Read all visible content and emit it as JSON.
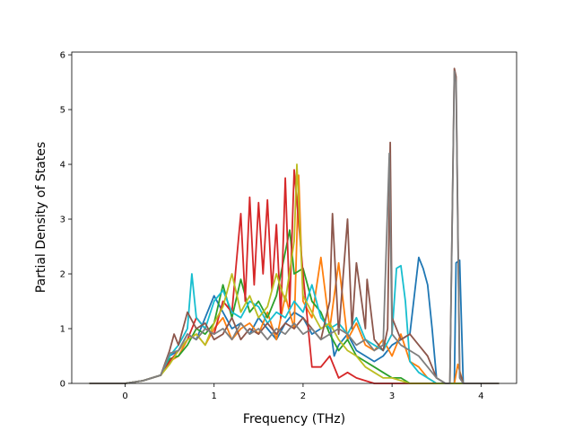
{
  "chart_data": {
    "type": "line",
    "title": "",
    "xlabel": "Frequency (THz)",
    "ylabel": "Partial Density of States",
    "xlim": [
      -0.6,
      4.4
    ],
    "ylim": [
      0,
      6.05
    ],
    "xticks": [
      0,
      1,
      2,
      3,
      4
    ],
    "yticks": [
      0,
      1,
      2,
      3,
      4,
      5,
      6
    ],
    "grid": false,
    "legend": "none",
    "colors": [
      "#1f77b4",
      "#ff7f0e",
      "#2ca02c",
      "#d62728",
      "#17becf",
      "#bcbd22",
      "#8c564b",
      "#7f7f7f"
    ],
    "series": [
      {
        "color": "#1f77b4",
        "x": [
          -0.4,
          0.0,
          0.2,
          0.4,
          0.5,
          0.6,
          0.7,
          0.8,
          0.9,
          1.0,
          1.1,
          1.2,
          1.3,
          1.4,
          1.5,
          1.6,
          1.7,
          1.8,
          1.9,
          2.0,
          2.1,
          2.2,
          2.3,
          2.35,
          2.4,
          2.5,
          2.6,
          2.7,
          2.8,
          2.9,
          3.0,
          3.1,
          3.2,
          3.3,
          3.35,
          3.4,
          3.45,
          3.5,
          3.6,
          3.7,
          3.72,
          3.76,
          3.8,
          4.2
        ],
        "y": [
          0,
          0,
          0.05,
          0.15,
          0.5,
          0.6,
          0.9,
          0.8,
          1.2,
          1.6,
          1.3,
          1.0,
          1.1,
          0.9,
          1.2,
          1.0,
          0.8,
          1.1,
          1.3,
          1.2,
          0.9,
          1.0,
          1.1,
          0.5,
          0.7,
          0.9,
          0.6,
          0.5,
          0.4,
          0.5,
          0.7,
          0.8,
          0.9,
          2.3,
          2.1,
          1.8,
          1.0,
          0.1,
          0,
          0,
          2.2,
          2.25,
          0,
          0
        ]
      },
      {
        "color": "#ff7f0e",
        "x": [
          -0.4,
          0.0,
          0.2,
          0.4,
          0.5,
          0.6,
          0.7,
          0.8,
          0.9,
          1.0,
          1.1,
          1.2,
          1.3,
          1.4,
          1.5,
          1.6,
          1.7,
          1.8,
          1.9,
          1.95,
          2.0,
          2.1,
          2.2,
          2.3,
          2.4,
          2.5,
          2.6,
          2.7,
          2.8,
          2.9,
          3.0,
          3.1,
          3.2,
          3.3,
          3.4,
          3.5,
          3.6,
          3.7,
          3.74,
          3.8,
          4.2
        ],
        "y": [
          0,
          0,
          0.05,
          0.15,
          0.4,
          0.5,
          0.8,
          0.9,
          0.7,
          1.0,
          1.2,
          0.8,
          1.0,
          1.1,
          0.9,
          1.3,
          0.8,
          1.6,
          1.0,
          3.8,
          1.5,
          1.2,
          2.3,
          1.0,
          2.2,
          0.8,
          1.1,
          0.7,
          0.6,
          0.8,
          0.5,
          0.9,
          0.4,
          0.3,
          0.1,
          0,
          0,
          0,
          0.35,
          0,
          0
        ]
      },
      {
        "color": "#2ca02c",
        "x": [
          -0.4,
          0.0,
          0.2,
          0.4,
          0.5,
          0.6,
          0.7,
          0.8,
          0.9,
          1.0,
          1.1,
          1.2,
          1.3,
          1.4,
          1.5,
          1.6,
          1.7,
          1.8,
          1.85,
          1.9,
          2.0,
          2.1,
          2.2,
          2.3,
          2.4,
          2.5,
          2.6,
          2.7,
          2.8,
          2.9,
          3.0,
          3.1,
          3.2,
          3.3,
          3.4,
          3.5,
          4.2
        ],
        "y": [
          0,
          0,
          0.05,
          0.15,
          0.45,
          0.5,
          0.7,
          1.0,
          0.9,
          1.1,
          1.8,
          1.2,
          1.9,
          1.3,
          1.5,
          1.2,
          1.6,
          2.4,
          2.8,
          2.0,
          2.1,
          1.5,
          1.3,
          0.9,
          0.6,
          0.8,
          0.5,
          0.4,
          0.3,
          0.2,
          0.1,
          0.1,
          0,
          0,
          0,
          0,
          0
        ]
      },
      {
        "color": "#d62728",
        "x": [
          -0.4,
          0.0,
          0.2,
          0.4,
          0.5,
          0.6,
          0.7,
          0.8,
          0.9,
          1.0,
          1.1,
          1.2,
          1.25,
          1.3,
          1.35,
          1.4,
          1.45,
          1.5,
          1.55,
          1.6,
          1.65,
          1.7,
          1.75,
          1.8,
          1.85,
          1.9,
          2.0,
          2.1,
          2.2,
          2.3,
          2.4,
          2.5,
          2.6,
          2.7,
          2.8,
          2.9,
          3.0,
          3.1,
          3.2,
          4.2
        ],
        "y": [
          0,
          0,
          0.05,
          0.15,
          0.4,
          0.6,
          0.8,
          1.2,
          1.0,
          0.9,
          1.5,
          1.3,
          2.2,
          3.1,
          1.5,
          3.4,
          1.8,
          3.3,
          2.0,
          3.35,
          1.7,
          2.9,
          1.2,
          3.75,
          1.4,
          3.9,
          2.0,
          0.3,
          0.3,
          0.5,
          0.1,
          0.2,
          0.1,
          0.05,
          0,
          0,
          0,
          0,
          0,
          0
        ]
      },
      {
        "color": "#17becf",
        "x": [
          -0.4,
          0.0,
          0.2,
          0.4,
          0.5,
          0.6,
          0.7,
          0.75,
          0.8,
          0.9,
          1.0,
          1.1,
          1.2,
          1.3,
          1.4,
          1.5,
          1.6,
          1.7,
          1.8,
          1.9,
          2.0,
          2.1,
          2.2,
          2.3,
          2.4,
          2.5,
          2.6,
          2.7,
          2.8,
          2.9,
          3.0,
          3.05,
          3.1,
          3.15,
          3.2,
          3.3,
          3.4,
          3.5,
          4.2
        ],
        "y": [
          0,
          0,
          0.05,
          0.15,
          0.5,
          0.7,
          1.0,
          2.0,
          1.2,
          1.0,
          1.5,
          1.7,
          1.3,
          1.2,
          1.5,
          1.4,
          1.1,
          1.3,
          1.2,
          1.5,
          1.3,
          1.8,
          1.2,
          1.0,
          1.1,
          0.9,
          1.2,
          0.8,
          0.7,
          0.6,
          0.9,
          2.1,
          2.15,
          1.5,
          0.4,
          0.2,
          0.1,
          0,
          0
        ]
      },
      {
        "color": "#bcbd22",
        "x": [
          -0.4,
          0.0,
          0.2,
          0.4,
          0.5,
          0.6,
          0.7,
          0.8,
          0.9,
          1.0,
          1.1,
          1.2,
          1.3,
          1.4,
          1.5,
          1.6,
          1.7,
          1.8,
          1.9,
          1.93,
          2.0,
          2.1,
          2.2,
          2.3,
          2.4,
          2.5,
          2.6,
          2.7,
          2.8,
          2.9,
          3.0,
          3.2,
          3.4,
          4.2
        ],
        "y": [
          0,
          0,
          0.05,
          0.15,
          0.35,
          0.6,
          0.8,
          0.9,
          0.7,
          1.1,
          1.4,
          2.0,
          1.3,
          1.6,
          1.2,
          1.4,
          2.0,
          1.5,
          2.6,
          4.0,
          1.6,
          1.3,
          1.0,
          1.1,
          0.8,
          0.6,
          0.5,
          0.3,
          0.2,
          0.1,
          0.1,
          0,
          0,
          0
        ]
      },
      {
        "color": "#8c564b",
        "x": [
          -0.4,
          0.0,
          0.2,
          0.4,
          0.5,
          0.55,
          0.6,
          0.7,
          0.8,
          0.9,
          1.0,
          1.1,
          1.2,
          1.3,
          1.4,
          1.5,
          1.6,
          1.7,
          1.8,
          1.9,
          2.0,
          2.1,
          2.2,
          2.3,
          2.33,
          2.4,
          2.5,
          2.55,
          2.6,
          2.7,
          2.72,
          2.8,
          2.9,
          2.95,
          2.98,
          3.0,
          3.1,
          3.2,
          3.3,
          3.4,
          3.45,
          3.5,
          3.6,
          3.65,
          3.7,
          3.72,
          3.76,
          3.8,
          4.2
        ],
        "y": [
          0,
          0,
          0.05,
          0.15,
          0.6,
          0.9,
          0.7,
          1.3,
          1.0,
          1.1,
          0.8,
          0.9,
          1.2,
          0.8,
          1.0,
          0.9,
          1.1,
          0.9,
          1.1,
          1.0,
          1.2,
          1.0,
          0.8,
          1.5,
          3.1,
          0.9,
          3.0,
          1.0,
          2.2,
          1.0,
          1.9,
          0.8,
          0.6,
          1.0,
          4.4,
          1.2,
          0.8,
          0.9,
          0.7,
          0.5,
          0.3,
          0.1,
          0,
          0,
          5.75,
          5.6,
          0.2,
          0,
          0
        ]
      },
      {
        "color": "#7f7f7f",
        "x": [
          -0.4,
          0.0,
          0.2,
          0.4,
          0.5,
          0.6,
          0.7,
          0.8,
          0.9,
          1.0,
          1.1,
          1.2,
          1.3,
          1.4,
          1.5,
          1.6,
          1.7,
          1.8,
          1.9,
          2.0,
          2.1,
          2.2,
          2.3,
          2.4,
          2.5,
          2.6,
          2.7,
          2.8,
          2.9,
          2.97,
          3.0,
          3.1,
          3.2,
          3.3,
          3.4,
          3.5,
          3.6,
          3.65,
          3.7,
          3.72,
          3.76,
          3.8,
          4.2
        ],
        "y": [
          0,
          0,
          0.05,
          0.15,
          0.55,
          0.6,
          0.9,
          0.8,
          1.0,
          0.9,
          1.0,
          0.8,
          1.1,
          0.9,
          1.0,
          0.8,
          1.0,
          0.9,
          1.1,
          0.9,
          1.0,
          0.8,
          0.9,
          1.0,
          0.9,
          0.7,
          0.8,
          0.6,
          0.7,
          4.2,
          0.9,
          0.7,
          0.6,
          0.5,
          0.3,
          0.1,
          0,
          0,
          5.7,
          5.5,
          0.1,
          0,
          0
        ]
      }
    ]
  }
}
